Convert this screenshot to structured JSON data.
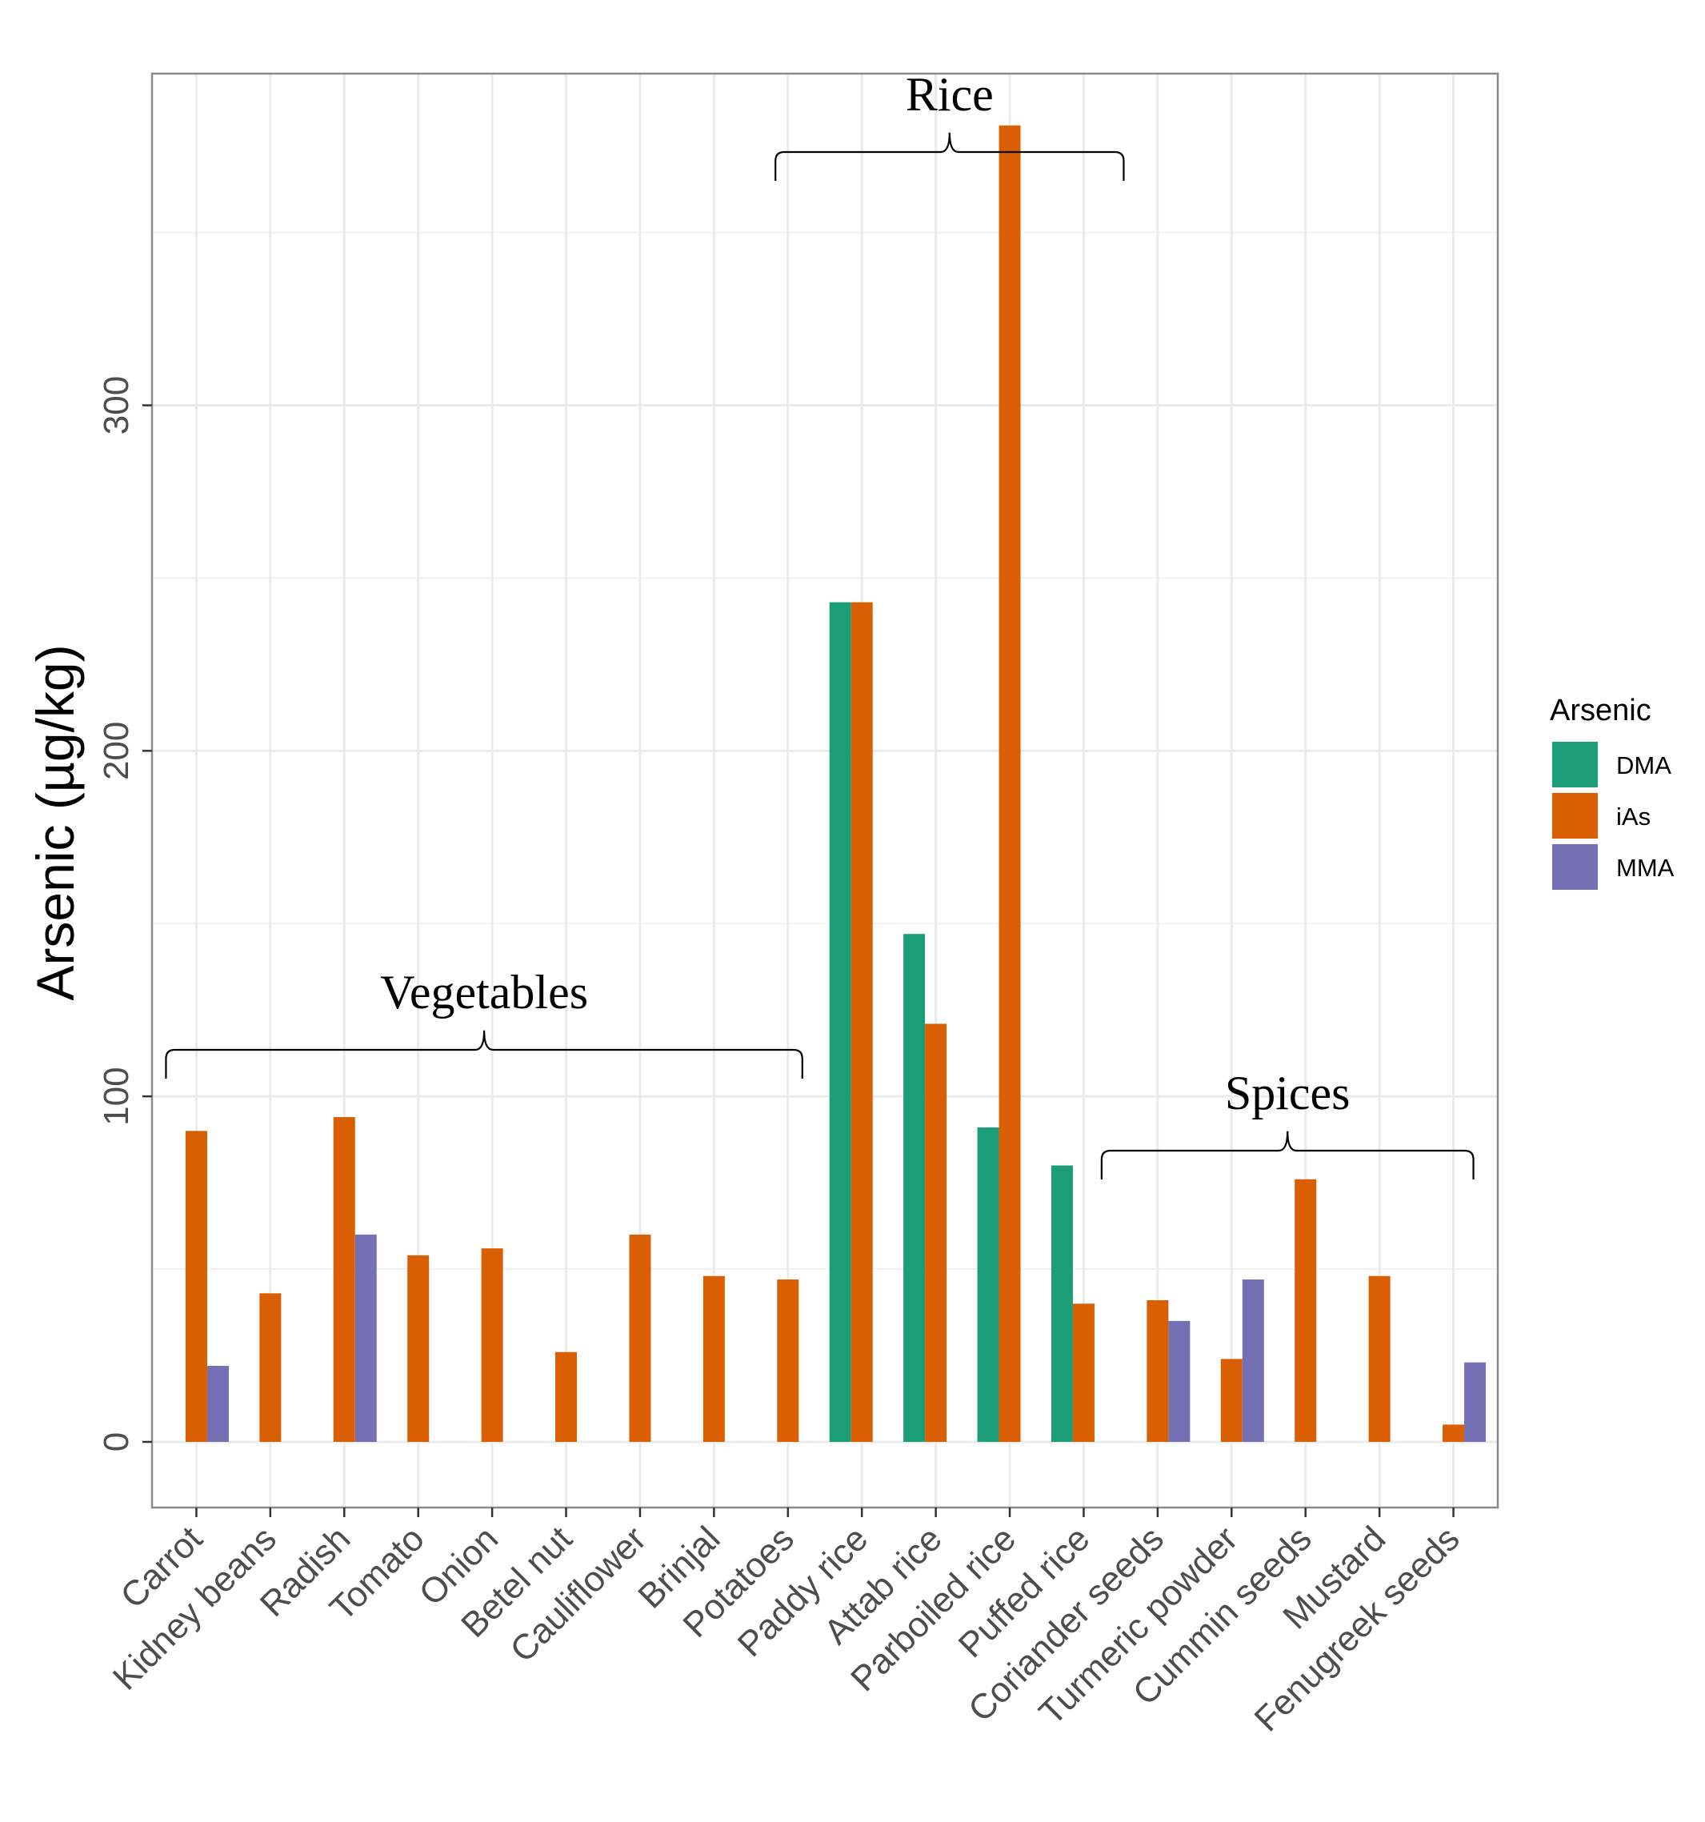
{
  "chart_data": {
    "type": "bar",
    "ylabel": "Arsenic (µg/kg)",
    "xlabel": "",
    "ylim": [
      -19,
      396
    ],
    "yticks": [
      0,
      100,
      200,
      300
    ],
    "grid": true,
    "legend": {
      "title": "Arsenic",
      "position": "right"
    },
    "categories": [
      "Carrot",
      "Kidney beans",
      "Radish",
      "Tomato",
      "Onion",
      "Betel nut",
      "Cauliflower",
      "Brinjal",
      "Potatoes",
      "Paddy rice",
      "Attab rice",
      "Parboiled rice",
      "Puffed rice",
      "Coriander seeds",
      "Turmeric powder",
      "Cummin seeds",
      "Mustard",
      "Fenugreek seeds"
    ],
    "series": [
      {
        "name": "DMA",
        "color": "#1b9e77",
        "values": [
          0,
          0,
          0,
          0,
          0,
          0,
          0,
          0,
          0,
          243,
          147,
          91,
          80,
          0,
          0,
          0,
          0,
          0
        ]
      },
      {
        "name": "iAs",
        "color": "#d95f02",
        "values": [
          90,
          43,
          94,
          54,
          56,
          26,
          60,
          48,
          47,
          243,
          121,
          381,
          40,
          41,
          24,
          76,
          48,
          5
        ]
      },
      {
        "name": "MMA",
        "color": "#7570b3",
        "values": [
          22,
          0,
          60,
          0,
          0,
          0,
          0,
          0,
          0,
          0,
          0,
          0,
          0,
          35,
          47,
          0,
          0,
          23
        ]
      }
    ],
    "annotations": [
      {
        "text": "Vegetables",
        "from": "Carrot",
        "to": "Potatoes"
      },
      {
        "text": "Rice",
        "from": "Paddy rice",
        "to": "Puffed rice"
      },
      {
        "text": "Spices",
        "from": "Coriander seeds",
        "to": "Fenugreek seeds"
      }
    ]
  }
}
